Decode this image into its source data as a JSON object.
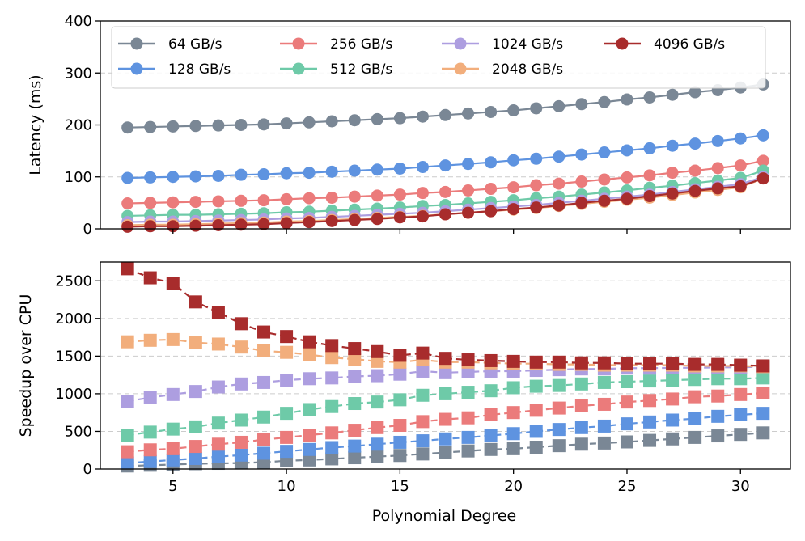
{
  "chart_data": [
    {
      "type": "line",
      "panel": "top",
      "title": "",
      "xlabel": "",
      "ylabel": "Latency (ms)",
      "xlim": [
        1.8,
        32.2
      ],
      "ylim": [
        0,
        400
      ],
      "yticks": [
        0,
        100,
        200,
        300,
        400
      ],
      "xticks": [
        5,
        10,
        15,
        20,
        25,
        30
      ],
      "marker": "circle",
      "linestyle": "solid",
      "grid": "horizontal dashed",
      "legend_position": "upper-left",
      "legend_columns": 4,
      "x": [
        3,
        4,
        5,
        6,
        7,
        8,
        9,
        10,
        11,
        12,
        13,
        14,
        15,
        16,
        17,
        18,
        19,
        20,
        21,
        22,
        23,
        24,
        25,
        26,
        27,
        28,
        29,
        30,
        31
      ],
      "series": [
        {
          "name": "64 GB/s",
          "color": "#7a8795",
          "values": [
            195,
            196,
            197,
            198,
            199,
            200,
            201,
            203,
            205,
            207,
            209,
            211,
            213,
            216,
            219,
            222,
            225,
            228,
            232,
            236,
            240,
            244,
            249,
            253,
            258,
            263,
            267,
            272,
            278
          ]
        },
        {
          "name": "128 GB/s",
          "color": "#5e93e0",
          "values": [
            98,
            99,
            100,
            101,
            102,
            104,
            105,
            107,
            108,
            110,
            112,
            114,
            116,
            119,
            122,
            125,
            128,
            132,
            135,
            139,
            143,
            147,
            151,
            155,
            160,
            164,
            169,
            174,
            180
          ]
        },
        {
          "name": "256 GB/s",
          "color": "#eb7b7b",
          "values": [
            49,
            50,
            51,
            52,
            53,
            54,
            55,
            57,
            59,
            60,
            62,
            64,
            66,
            69,
            71,
            74,
            77,
            80,
            84,
            87,
            91,
            95,
            99,
            103,
            108,
            112,
            117,
            122,
            131
          ]
        },
        {
          "name": "512 GB/s",
          "color": "#6ecaa8",
          "values": [
            25,
            26,
            27,
            27,
            28,
            29,
            30,
            32,
            33,
            35,
            37,
            39,
            41,
            44,
            46,
            49,
            52,
            55,
            59,
            62,
            66,
            70,
            74,
            79,
            83,
            88,
            93,
            98,
            112
          ]
        },
        {
          "name": "1024 GB/s",
          "color": "#ad9ee0",
          "values": [
            13,
            14,
            14,
            15,
            16,
            17,
            18,
            20,
            21,
            23,
            25,
            27,
            29,
            31,
            34,
            37,
            40,
            43,
            46,
            50,
            54,
            58,
            62,
            66,
            71,
            76,
            81,
            86,
            100
          ]
        },
        {
          "name": "2048 GB/s",
          "color": "#f2ae7c",
          "values": [
            7,
            8,
            8,
            9,
            10,
            11,
            12,
            14,
            15,
            17,
            19,
            21,
            23,
            25,
            28,
            31,
            34,
            37,
            40,
            44,
            48,
            52,
            56,
            60,
            65,
            70,
            75,
            80,
            97
          ]
        },
        {
          "name": "4096 GB/s",
          "color": "#a82c2c",
          "values": [
            4,
            5,
            5,
            6,
            7,
            8,
            9,
            11,
            13,
            15,
            17,
            19,
            22,
            24,
            28,
            31,
            34,
            38,
            41,
            45,
            50,
            54,
            58,
            63,
            68,
            73,
            78,
            82,
            97
          ]
        }
      ]
    },
    {
      "type": "line",
      "panel": "bottom",
      "title": "",
      "xlabel": "Polynomial Degree",
      "ylabel": "Speedup over CPU",
      "xlim": [
        1.8,
        32.2
      ],
      "ylim": [
        0,
        2750
      ],
      "yticks": [
        0,
        500,
        1000,
        1500,
        2000,
        2500
      ],
      "xticks": [
        5,
        10,
        15,
        20,
        25,
        30
      ],
      "marker": "square",
      "linestyle": "dashed",
      "grid": "horizontal dashed",
      "x": [
        3,
        4,
        5,
        6,
        7,
        8,
        9,
        10,
        11,
        12,
        13,
        14,
        15,
        16,
        17,
        18,
        19,
        20,
        21,
        22,
        23,
        24,
        25,
        26,
        27,
        28,
        29,
        30,
        31
      ],
      "series": [
        {
          "name": "64 GB/s",
          "color": "#7a8795",
          "values": [
            40,
            50,
            60,
            70,
            75,
            80,
            90,
            110,
            120,
            135,
            150,
            165,
            180,
            200,
            220,
            240,
            260,
            270,
            290,
            310,
            330,
            345,
            360,
            380,
            400,
            420,
            440,
            460,
            480
          ]
        },
        {
          "name": "128 GB/s",
          "color": "#5e93e0",
          "values": [
            80,
            100,
            120,
            140,
            165,
            185,
            210,
            235,
            260,
            285,
            305,
            330,
            355,
            375,
            400,
            420,
            445,
            470,
            500,
            525,
            550,
            570,
            600,
            625,
            650,
            670,
            700,
            720,
            740
          ]
        },
        {
          "name": "256 GB/s",
          "color": "#eb7b7b",
          "values": [
            230,
            255,
            270,
            300,
            330,
            355,
            390,
            420,
            450,
            480,
            515,
            550,
            580,
            630,
            660,
            680,
            720,
            750,
            780,
            810,
            840,
            860,
            890,
            910,
            930,
            960,
            970,
            990,
            1010
          ]
        },
        {
          "name": "512 GB/s",
          "color": "#6ecaa8",
          "values": [
            450,
            490,
            530,
            560,
            610,
            650,
            690,
            740,
            790,
            830,
            870,
            890,
            920,
            980,
            1000,
            1020,
            1040,
            1080,
            1100,
            1110,
            1130,
            1150,
            1160,
            1170,
            1180,
            1190,
            1200,
            1200,
            1210
          ]
        },
        {
          "name": "1024 GB/s",
          "color": "#ad9ee0",
          "values": [
            900,
            950,
            990,
            1030,
            1090,
            1130,
            1150,
            1180,
            1200,
            1210,
            1230,
            1240,
            1260,
            1300,
            1280,
            1290,
            1300,
            1300,
            1310,
            1320,
            1330,
            1330,
            1340,
            1340,
            1345,
            1345,
            1350,
            1350,
            1360
          ]
        },
        {
          "name": "2048 GB/s",
          "color": "#f2ae7c",
          "values": [
            1690,
            1710,
            1720,
            1680,
            1660,
            1620,
            1570,
            1550,
            1520,
            1480,
            1460,
            1430,
            1420,
            1450,
            1420,
            1420,
            1410,
            1400,
            1400,
            1390,
            1390,
            1380,
            1380,
            1380,
            1380,
            1370,
            1370,
            1370,
            1360
          ]
        },
        {
          "name": "4096 GB/s",
          "color": "#a82c2c",
          "values": [
            2660,
            2540,
            2470,
            2220,
            2080,
            1930,
            1820,
            1760,
            1690,
            1640,
            1600,
            1560,
            1510,
            1540,
            1470,
            1450,
            1440,
            1430,
            1420,
            1420,
            1410,
            1410,
            1400,
            1400,
            1400,
            1390,
            1390,
            1380,
            1370
          ]
        }
      ]
    }
  ]
}
